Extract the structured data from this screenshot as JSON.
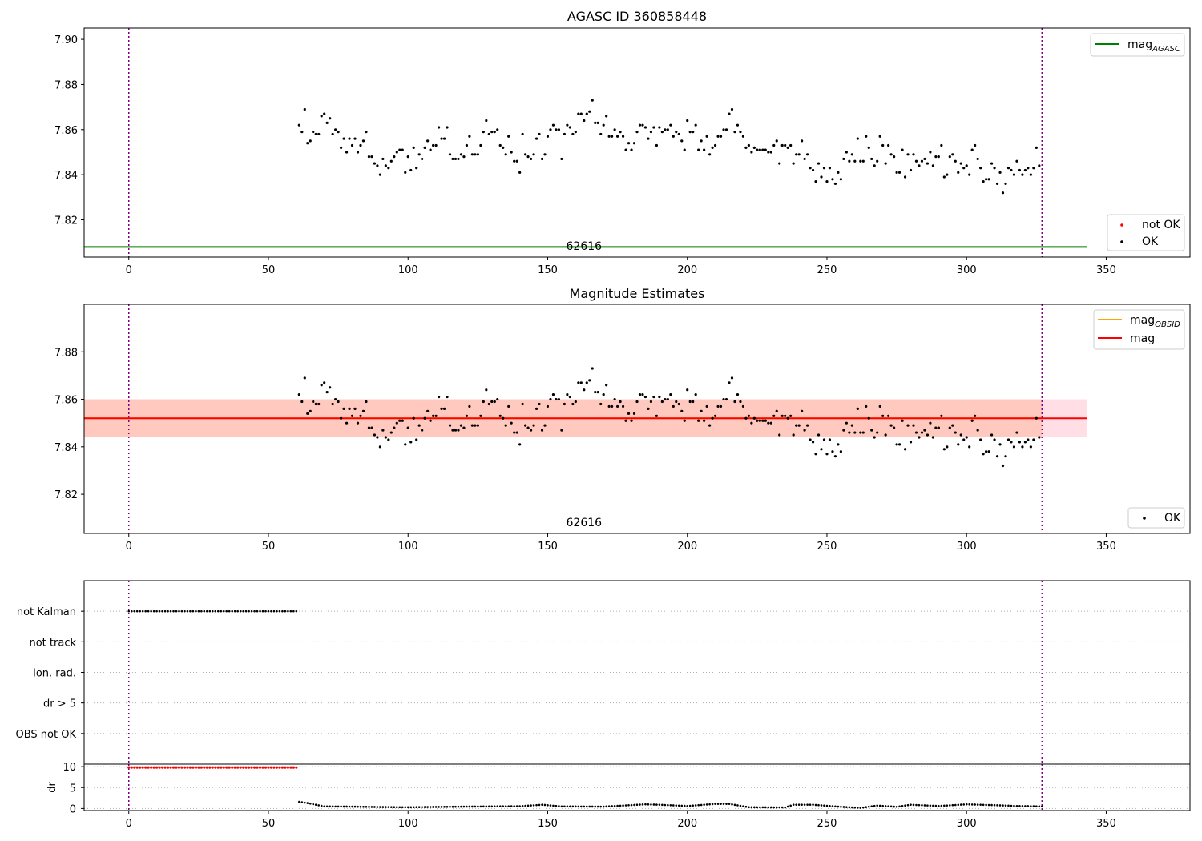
{
  "colors": {
    "ok": "#000000",
    "not_ok": "#ff0000",
    "agasc_line": "#008000",
    "mag_line": "#ff0000",
    "mag_obsid_line": "#ffa500",
    "band_red": "#ffc0cb",
    "band_orange": "#ffa07a",
    "marker_line": "#800080",
    "grid": "#b0b0b0"
  },
  "chart_data": [
    {
      "type": "scatter",
      "title": "AGASC ID 360858448",
      "xlim": [
        -16,
        380
      ],
      "ylim": [
        7.8035,
        7.905
      ],
      "xticks": [
        0,
        50,
        100,
        150,
        200,
        250,
        300,
        350
      ],
      "yticks": [
        7.82,
        7.84,
        7.86,
        7.88,
        7.9
      ],
      "vlines": [
        0,
        327
      ],
      "hlines": [
        {
          "name": "mag_AGASC",
          "y": 7.808,
          "x": [
            -16,
            343
          ]
        }
      ],
      "obs_label": "62616",
      "obs_label_x": 163,
      "legend_top": {
        "position": "top-right",
        "entries": [
          {
            "base": "mag",
            "sub": "AGASC"
          }
        ]
      },
      "legend_bottom": {
        "position": "bottom-right",
        "entries": [
          "not OK",
          "OK"
        ]
      },
      "series": [
        {
          "name": "OK",
          "source": "mag_points"
        }
      ]
    },
    {
      "type": "scatter",
      "title": "Magnitude Estimates",
      "xlim": [
        -16,
        380
      ],
      "ylim": [
        7.8035,
        7.9
      ],
      "xticks": [
        0,
        50,
        100,
        150,
        200,
        250,
        300,
        350
      ],
      "yticks": [
        7.82,
        7.84,
        7.86,
        7.88
      ],
      "vlines": [
        0,
        327
      ],
      "hlines": [
        {
          "name": "mag_OBSID",
          "y": 7.852,
          "x": [
            -16,
            327
          ]
        },
        {
          "name": "mag",
          "y": 7.852,
          "x": [
            -16,
            343
          ]
        }
      ],
      "bands": [
        {
          "name": "mag range",
          "y": [
            7.844,
            7.86
          ],
          "x": [
            -16,
            343
          ]
        },
        {
          "name": "mag_OBSID range",
          "y": [
            7.844,
            7.86
          ],
          "x": [
            -16,
            327
          ]
        }
      ],
      "obs_label": "62616",
      "obs_label_x": 163,
      "legend_top": {
        "position": "top-right",
        "entries": [
          {
            "base": "mag",
            "sub": "OBSID"
          },
          {
            "base": "mag",
            "sub": ""
          }
        ]
      },
      "legend_bottom": {
        "position": "bottom-right",
        "entries": [
          "OK"
        ]
      },
      "series": [
        {
          "name": "OK",
          "source": "mag_points"
        }
      ]
    },
    {
      "type": "scatter",
      "xlim": [
        -16,
        380
      ],
      "categories": [
        "not Kalman",
        "not track",
        "Ion. rad.",
        "dr > 5",
        "OBS not OK"
      ],
      "vlines": [
        0,
        327
      ],
      "flags": {
        "not Kalman": [
          0,
          60
        ]
      },
      "spacing": 1
    },
    {
      "type": "scatter",
      "xlim": [
        -16,
        380
      ],
      "ylim": [
        -0.5,
        10.6
      ],
      "ylabel": "dr",
      "xticks": [
        0,
        50,
        100,
        150,
        200,
        250,
        300,
        350
      ],
      "yticks": [
        0,
        5,
        10
      ],
      "vlines": [
        0,
        327
      ],
      "clipped": {
        "range": [
          0,
          60
        ],
        "value": 9.8
      },
      "dr_knots": [
        [
          61,
          1.6
        ],
        [
          64,
          1.3
        ],
        [
          67,
          0.9
        ],
        [
          70,
          0.5
        ],
        [
          80,
          0.45
        ],
        [
          90,
          0.35
        ],
        [
          100,
          0.3
        ],
        [
          120,
          0.45
        ],
        [
          140,
          0.55
        ],
        [
          148,
          0.9
        ],
        [
          155,
          0.5
        ],
        [
          170,
          0.45
        ],
        [
          185,
          1.0
        ],
        [
          190,
          0.9
        ],
        [
          200,
          0.6
        ],
        [
          210,
          1.1
        ],
        [
          215,
          1.1
        ],
        [
          222,
          0.3
        ],
        [
          235,
          0.25
        ],
        [
          238,
          0.9
        ],
        [
          245,
          0.9
        ],
        [
          255,
          0.4
        ],
        [
          262,
          0.15
        ],
        [
          268,
          0.7
        ],
        [
          275,
          0.4
        ],
        [
          280,
          0.9
        ],
        [
          290,
          0.6
        ],
        [
          300,
          1.0
        ],
        [
          310,
          0.8
        ],
        [
          318,
          0.6
        ],
        [
          327,
          0.5
        ]
      ]
    }
  ],
  "mag_points": [
    [
      61,
      7.862
    ],
    [
      62,
      7.859
    ],
    [
      63,
      7.869
    ],
    [
      64,
      7.854
    ],
    [
      65,
      7.855
    ],
    [
      66,
      7.859
    ],
    [
      67,
      7.858
    ],
    [
      68,
      7.858
    ],
    [
      69,
      7.866
    ],
    [
      70,
      7.867
    ],
    [
      71,
      7.863
    ],
    [
      72,
      7.865
    ],
    [
      73,
      7.858
    ],
    [
      74,
      7.86
    ],
    [
      75,
      7.859
    ],
    [
      76,
      7.852
    ],
    [
      77,
      7.856
    ],
    [
      78,
      7.85
    ],
    [
      79,
      7.856
    ],
    [
      80,
      7.853
    ],
    [
      81,
      7.856
    ],
    [
      82,
      7.85
    ],
    [
      83,
      7.853
    ],
    [
      84,
      7.855
    ],
    [
      85,
      7.859
    ],
    [
      86,
      7.848
    ],
    [
      87,
      7.848
    ],
    [
      88,
      7.845
    ],
    [
      89,
      7.844
    ],
    [
      90,
      7.84
    ],
    [
      91,
      7.847
    ],
    [
      92,
      7.844
    ],
    [
      93,
      7.843
    ],
    [
      94,
      7.846
    ],
    [
      95,
      7.848
    ],
    [
      96,
      7.85
    ],
    [
      97,
      7.851
    ],
    [
      98,
      7.851
    ],
    [
      99,
      7.841
    ],
    [
      100,
      7.848
    ],
    [
      101,
      7.842
    ],
    [
      102,
      7.852
    ],
    [
      103,
      7.843
    ],
    [
      104,
      7.849
    ],
    [
      105,
      7.847
    ],
    [
      106,
      7.852
    ],
    [
      107,
      7.855
    ],
    [
      108,
      7.851
    ],
    [
      109,
      7.853
    ],
    [
      110,
      7.853
    ],
    [
      111,
      7.861
    ],
    [
      112,
      7.856
    ],
    [
      113,
      7.856
    ],
    [
      114,
      7.861
    ],
    [
      115,
      7.849
    ],
    [
      116,
      7.847
    ],
    [
      117,
      7.847
    ],
    [
      118,
      7.847
    ],
    [
      119,
      7.849
    ],
    [
      120,
      7.848
    ],
    [
      121,
      7.853
    ],
    [
      122,
      7.857
    ],
    [
      123,
      7.849
    ],
    [
      124,
      7.849
    ],
    [
      125,
      7.849
    ],
    [
      126,
      7.853
    ],
    [
      127,
      7.859
    ],
    [
      128,
      7.864
    ],
    [
      129,
      7.858
    ],
    [
      130,
      7.859
    ],
    [
      131,
      7.859
    ],
    [
      132,
      7.86
    ],
    [
      133,
      7.853
    ],
    [
      134,
      7.852
    ],
    [
      135,
      7.849
    ],
    [
      136,
      7.857
    ],
    [
      137,
      7.85
    ],
    [
      138,
      7.846
    ],
    [
      139,
      7.846
    ],
    [
      140,
      7.841
    ],
    [
      141,
      7.858
    ],
    [
      142,
      7.849
    ],
    [
      143,
      7.848
    ],
    [
      144,
      7.847
    ],
    [
      145,
      7.849
    ],
    [
      146,
      7.856
    ],
    [
      147,
      7.858
    ],
    [
      148,
      7.847
    ],
    [
      149,
      7.849
    ],
    [
      150,
      7.857
    ],
    [
      151,
      7.86
    ],
    [
      152,
      7.862
    ],
    [
      153,
      7.86
    ],
    [
      154,
      7.86
    ],
    [
      155,
      7.847
    ],
    [
      156,
      7.858
    ],
    [
      157,
      7.862
    ],
    [
      158,
      7.861
    ],
    [
      159,
      7.858
    ],
    [
      160,
      7.859
    ],
    [
      161,
      7.867
    ],
    [
      162,
      7.867
    ],
    [
      163,
      7.864
    ],
    [
      164,
      7.867
    ],
    [
      165,
      7.868
    ],
    [
      166,
      7.873
    ],
    [
      167,
      7.863
    ],
    [
      168,
      7.863
    ],
    [
      169,
      7.858
    ],
    [
      170,
      7.862
    ],
    [
      171,
      7.866
    ],
    [
      172,
      7.857
    ],
    [
      173,
      7.857
    ],
    [
      174,
      7.86
    ],
    [
      175,
      7.857
    ],
    [
      176,
      7.859
    ],
    [
      177,
      7.857
    ],
    [
      178,
      7.851
    ],
    [
      179,
      7.854
    ],
    [
      180,
      7.851
    ],
    [
      181,
      7.854
    ],
    [
      182,
      7.859
    ],
    [
      183,
      7.862
    ],
    [
      184,
      7.862
    ],
    [
      185,
      7.861
    ],
    [
      186,
      7.856
    ],
    [
      187,
      7.859
    ],
    [
      188,
      7.861
    ],
    [
      189,
      7.853
    ],
    [
      190,
      7.861
    ],
    [
      191,
      7.859
    ],
    [
      192,
      7.86
    ],
    [
      193,
      7.86
    ],
    [
      194,
      7.862
    ],
    [
      195,
      7.857
    ],
    [
      196,
      7.859
    ],
    [
      197,
      7.858
    ],
    [
      198,
      7.855
    ],
    [
      199,
      7.851
    ],
    [
      200,
      7.864
    ],
    [
      201,
      7.859
    ],
    [
      202,
      7.859
    ],
    [
      203,
      7.862
    ],
    [
      204,
      7.851
    ],
    [
      205,
      7.855
    ],
    [
      206,
      7.851
    ],
    [
      207,
      7.857
    ],
    [
      208,
      7.849
    ],
    [
      209,
      7.852
    ],
    [
      210,
      7.853
    ],
    [
      211,
      7.857
    ],
    [
      212,
      7.857
    ],
    [
      213,
      7.86
    ],
    [
      214,
      7.86
    ],
    [
      215,
      7.867
    ],
    [
      216,
      7.869
    ],
    [
      217,
      7.859
    ],
    [
      218,
      7.862
    ],
    [
      219,
      7.859
    ],
    [
      220,
      7.857
    ],
    [
      221,
      7.852
    ],
    [
      222,
      7.853
    ],
    [
      223,
      7.85
    ],
    [
      224,
      7.852
    ],
    [
      225,
      7.851
    ],
    [
      226,
      7.851
    ],
    [
      227,
      7.851
    ],
    [
      228,
      7.851
    ],
    [
      229,
      7.85
    ],
    [
      230,
      7.85
    ],
    [
      231,
      7.853
    ],
    [
      232,
      7.855
    ],
    [
      233,
      7.845
    ],
    [
      234,
      7.853
    ],
    [
      235,
      7.853
    ],
    [
      236,
      7.852
    ],
    [
      237,
      7.853
    ],
    [
      238,
      7.845
    ],
    [
      239,
      7.849
    ],
    [
      240,
      7.849
    ],
    [
      241,
      7.855
    ],
    [
      242,
      7.847
    ],
    [
      243,
      7.849
    ],
    [
      244,
      7.843
    ],
    [
      245,
      7.842
    ],
    [
      246,
      7.837
    ],
    [
      247,
      7.845
    ],
    [
      248,
      7.839
    ],
    [
      249,
      7.843
    ],
    [
      250,
      7.837
    ],
    [
      251,
      7.843
    ],
    [
      252,
      7.838
    ],
    [
      253,
      7.836
    ],
    [
      254,
      7.841
    ],
    [
      255,
      7.838
    ],
    [
      256,
      7.847
    ],
    [
      257,
      7.85
    ],
    [
      258,
      7.846
    ],
    [
      259,
      7.849
    ],
    [
      260,
      7.846
    ],
    [
      261,
      7.856
    ],
    [
      262,
      7.846
    ],
    [
      263,
      7.846
    ],
    [
      264,
      7.857
    ],
    [
      265,
      7.852
    ],
    [
      266,
      7.847
    ],
    [
      267,
      7.844
    ],
    [
      268,
      7.846
    ],
    [
      269,
      7.857
    ],
    [
      270,
      7.853
    ],
    [
      271,
      7.845
    ],
    [
      272,
      7.853
    ],
    [
      273,
      7.849
    ],
    [
      274,
      7.848
    ],
    [
      275,
      7.841
    ],
    [
      276,
      7.841
    ],
    [
      277,
      7.851
    ],
    [
      278,
      7.839
    ],
    [
      279,
      7.849
    ],
    [
      280,
      7.842
    ],
    [
      281,
      7.849
    ],
    [
      282,
      7.846
    ],
    [
      283,
      7.844
    ],
    [
      284,
      7.846
    ],
    [
      285,
      7.847
    ],
    [
      286,
      7.845
    ],
    [
      287,
      7.85
    ],
    [
      288,
      7.844
    ],
    [
      289,
      7.848
    ],
    [
      290,
      7.848
    ],
    [
      291,
      7.853
    ],
    [
      292,
      7.839
    ],
    [
      293,
      7.84
    ],
    [
      294,
      7.848
    ],
    [
      295,
      7.849
    ],
    [
      296,
      7.846
    ],
    [
      297,
      7.841
    ],
    [
      298,
      7.845
    ],
    [
      299,
      7.843
    ],
    [
      300,
      7.844
    ],
    [
      301,
      7.84
    ],
    [
      302,
      7.851
    ],
    [
      303,
      7.853
    ],
    [
      304,
      7.847
    ],
    [
      305,
      7.843
    ],
    [
      306,
      7.837
    ],
    [
      307,
      7.838
    ],
    [
      308,
      7.838
    ],
    [
      309,
      7.845
    ],
    [
      310,
      7.843
    ],
    [
      311,
      7.836
    ],
    [
      312,
      7.841
    ],
    [
      313,
      7.832
    ],
    [
      314,
      7.836
    ],
    [
      315,
      7.843
    ],
    [
      316,
      7.842
    ],
    [
      317,
      7.84
    ],
    [
      318,
      7.846
    ],
    [
      319,
      7.842
    ],
    [
      320,
      7.84
    ],
    [
      321,
      7.842
    ],
    [
      322,
      7.843
    ],
    [
      323,
      7.84
    ],
    [
      324,
      7.843
    ],
    [
      325,
      7.852
    ],
    [
      326,
      7.844
    ]
  ]
}
